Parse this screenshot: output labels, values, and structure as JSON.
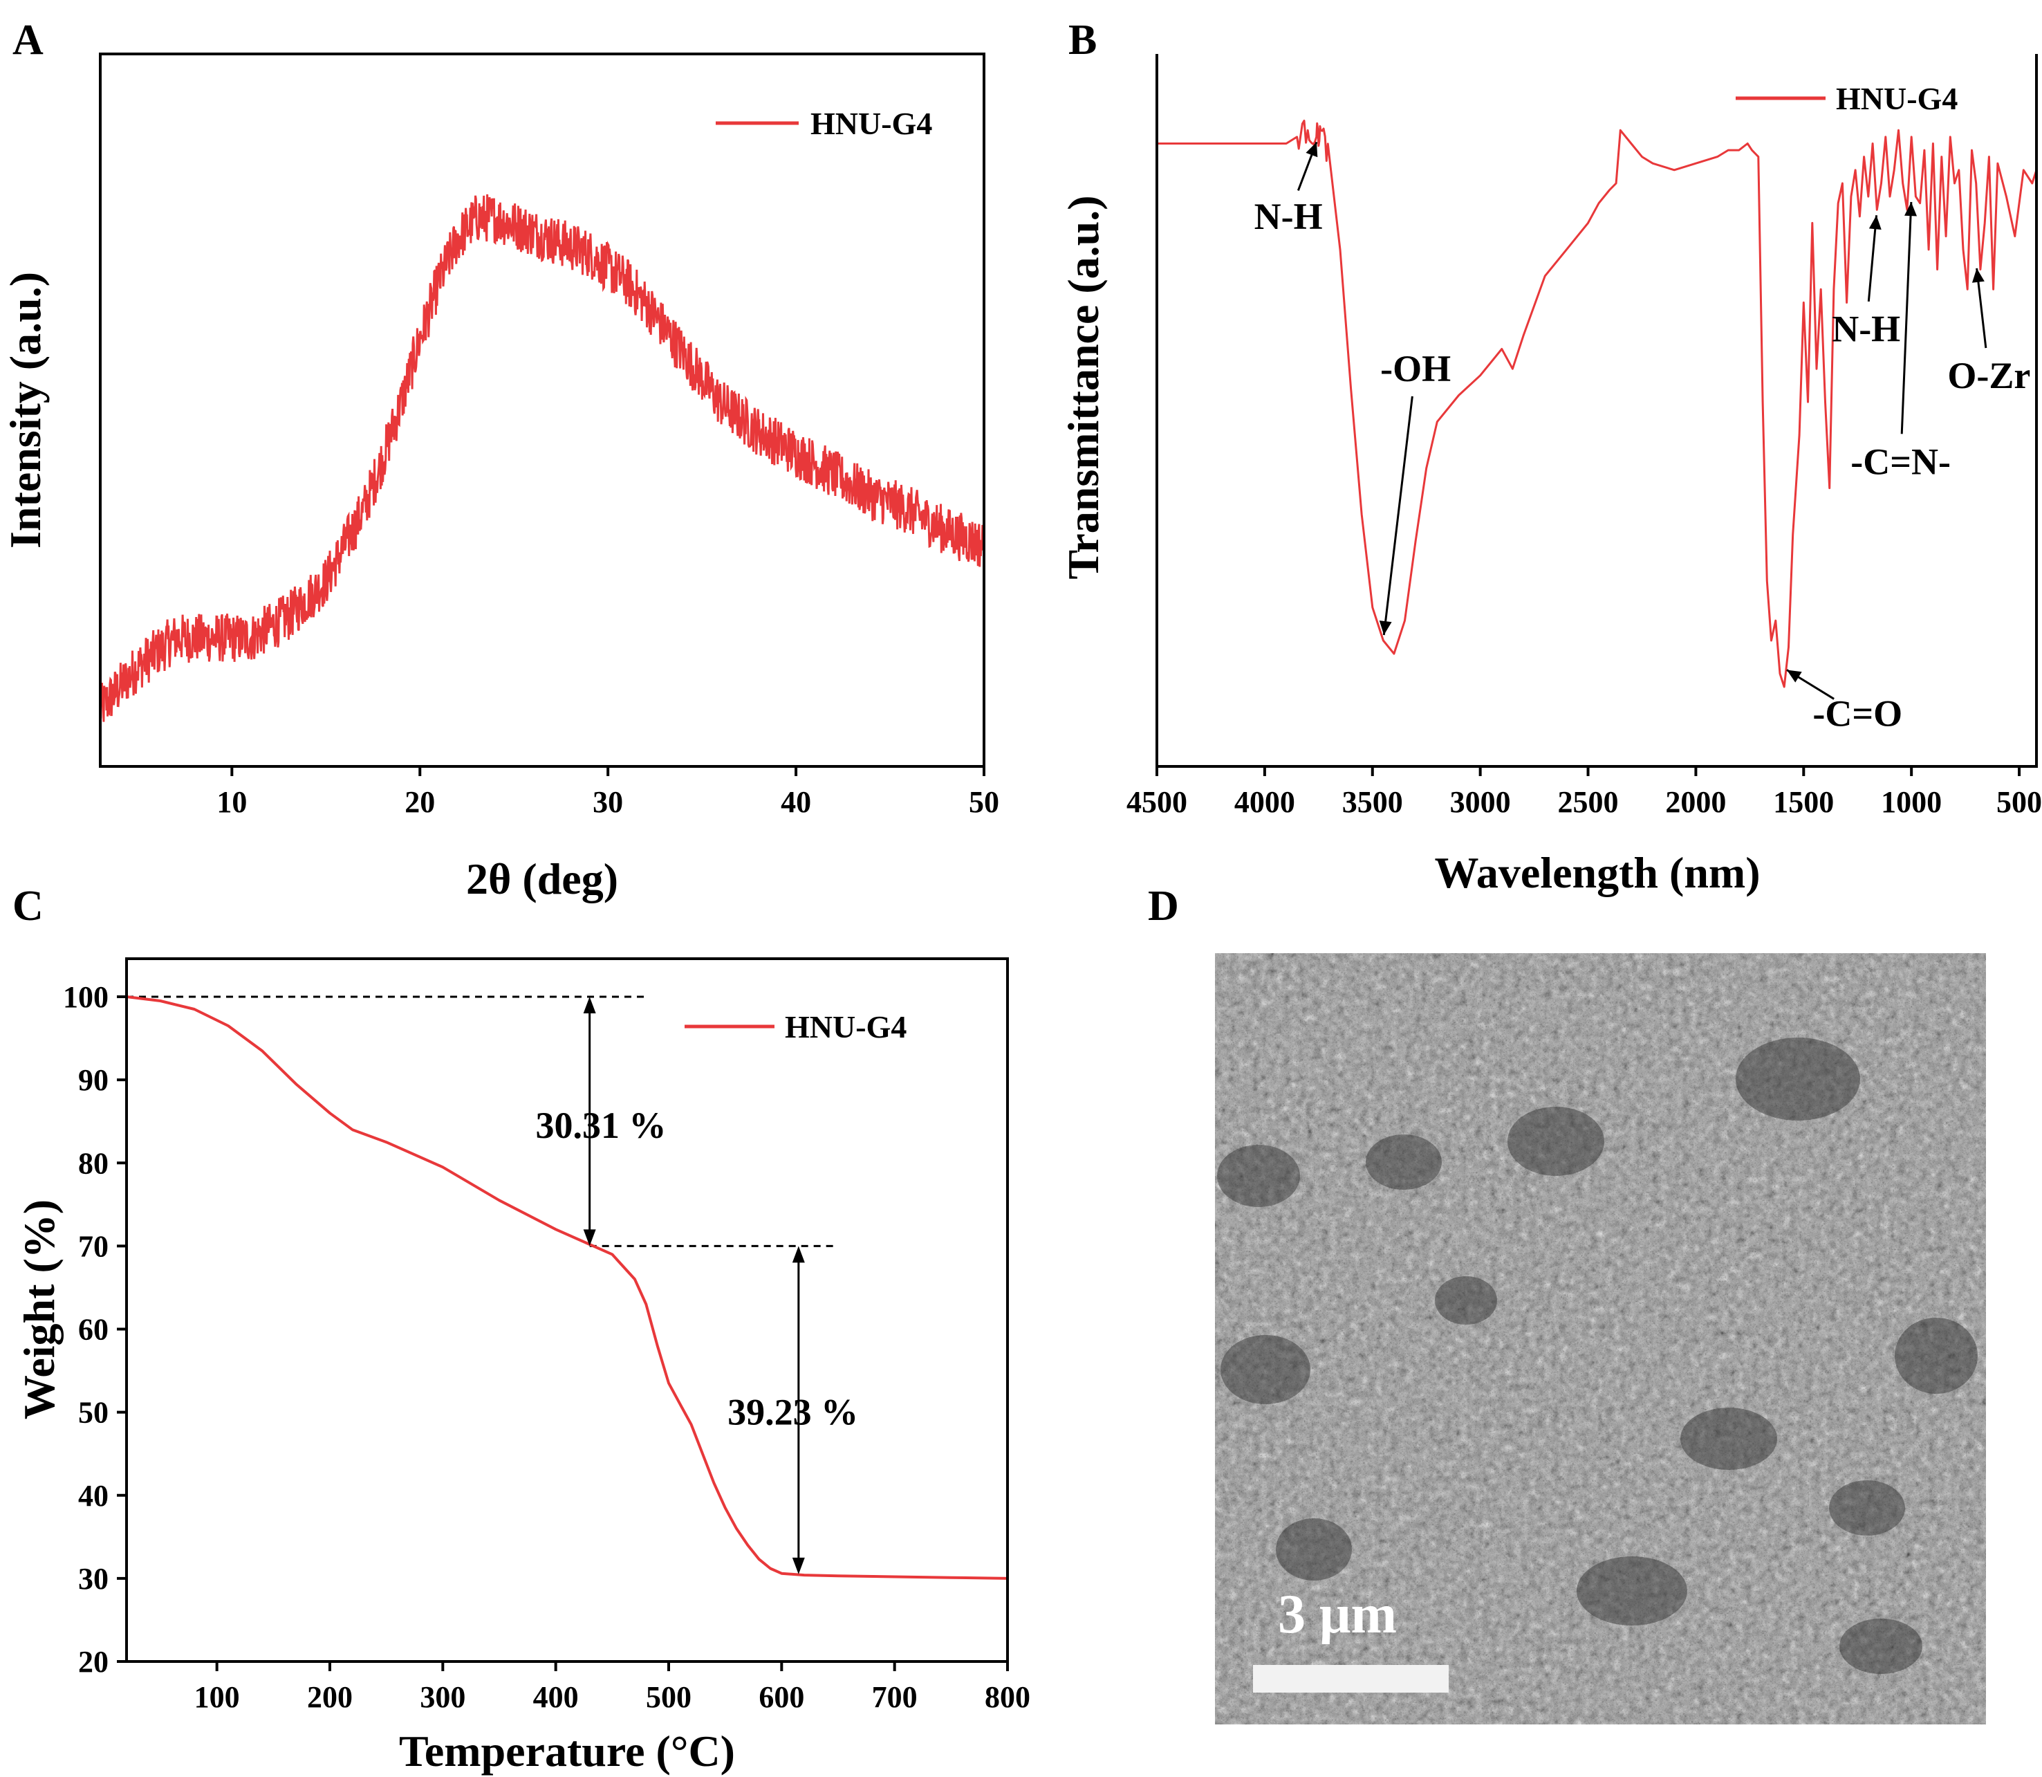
{
  "colors": {
    "series": "#e8383a",
    "axis": "#000000",
    "sem_bg": "#8a8a8a"
  },
  "panels": {
    "A": {
      "letter": "A"
    },
    "B": {
      "letter": "B"
    },
    "C": {
      "letter": "C"
    },
    "D": {
      "letter": "D",
      "scale_bar_label": "3 μm",
      "content": "SEM image"
    }
  },
  "chart_data": [
    {
      "panel": "A",
      "type": "line",
      "xlabel": "2θ (deg)",
      "ylabel": "Intensity (a.u.)",
      "xlim": [
        3,
        50
      ],
      "ylim": [
        0,
        1
      ],
      "xticks": [
        10,
        20,
        30,
        40,
        50
      ],
      "yticks": [],
      "legend": {
        "position": "top-right"
      },
      "series": [
        {
          "name": "HNU-G4",
          "noise": 0.035,
          "x": [
            3,
            5,
            7,
            9,
            11,
            13,
            15,
            17,
            18,
            19,
            20,
            21,
            22,
            23,
            24,
            25,
            26,
            27,
            28,
            29,
            30,
            31,
            32,
            34,
            36,
            38,
            40,
            42,
            44,
            46,
            48,
            50
          ],
          "y": [
            0.08,
            0.14,
            0.18,
            0.18,
            0.18,
            0.21,
            0.26,
            0.36,
            0.43,
            0.51,
            0.6,
            0.68,
            0.74,
            0.77,
            0.77,
            0.76,
            0.75,
            0.74,
            0.73,
            0.72,
            0.7,
            0.68,
            0.65,
            0.58,
            0.51,
            0.47,
            0.44,
            0.41,
            0.38,
            0.36,
            0.33,
            0.31
          ]
        }
      ]
    },
    {
      "panel": "B",
      "type": "line",
      "xlabel": "Wavelength (nm)",
      "ylabel": "Transmittance (a.u.)",
      "xlim": [
        4500,
        420
      ],
      "ylim": [
        0,
        1
      ],
      "xticks": [
        4500,
        4000,
        3500,
        3000,
        2500,
        2000,
        1500,
        1000,
        500
      ],
      "yticks": [],
      "legend": {
        "position": "top-right"
      },
      "series": [
        {
          "name": "HNU-G4",
          "x": [
            4500,
            4100,
            3900,
            3850,
            3800,
            3760,
            3740,
            3700,
            3650,
            3600,
            3550,
            3500,
            3450,
            3400,
            3350,
            3300,
            3250,
            3200,
            3100,
            3000,
            2900,
            2850,
            2800,
            2700,
            2600,
            2500,
            2450,
            2400,
            2370,
            2350,
            2300,
            2250,
            2200,
            2100,
            2000,
            1900,
            1850,
            1800,
            1760,
            1740,
            1710,
            1690,
            1670,
            1650,
            1630,
            1610,
            1590,
            1570,
            1550,
            1520,
            1500,
            1480,
            1460,
            1440,
            1420,
            1400,
            1380,
            1360,
            1340,
            1320,
            1300,
            1280,
            1260,
            1240,
            1220,
            1200,
            1180,
            1160,
            1140,
            1120,
            1100,
            1080,
            1060,
            1040,
            1020,
            1000,
            980,
            960,
            940,
            920,
            900,
            880,
            860,
            840,
            820,
            800,
            780,
            760,
            740,
            720,
            700,
            680,
            660,
            640,
            620,
            600,
            560,
            520,
            480,
            440,
            420
          ],
          "y": [
            0.94,
            0.94,
            0.94,
            0.95,
            0.96,
            0.95,
            0.96,
            0.92,
            0.78,
            0.57,
            0.38,
            0.24,
            0.19,
            0.17,
            0.22,
            0.34,
            0.45,
            0.52,
            0.56,
            0.59,
            0.63,
            0.6,
            0.65,
            0.74,
            0.78,
            0.82,
            0.85,
            0.87,
            0.88,
            0.96,
            0.94,
            0.92,
            0.91,
            0.9,
            0.91,
            0.92,
            0.93,
            0.93,
            0.94,
            0.93,
            0.92,
            0.55,
            0.28,
            0.19,
            0.22,
            0.14,
            0.12,
            0.18,
            0.35,
            0.5,
            0.7,
            0.55,
            0.82,
            0.6,
            0.72,
            0.55,
            0.42,
            0.72,
            0.85,
            0.88,
            0.7,
            0.86,
            0.9,
            0.83,
            0.92,
            0.86,
            0.94,
            0.84,
            0.88,
            0.95,
            0.86,
            0.9,
            0.96,
            0.88,
            0.84,
            0.95,
            0.86,
            0.85,
            0.93,
            0.78,
            0.94,
            0.75,
            0.92,
            0.8,
            0.95,
            0.88,
            0.9,
            0.78,
            0.72,
            0.93,
            0.88,
            0.75,
            0.82,
            0.92,
            0.72,
            0.91,
            0.86,
            0.8,
            0.9,
            0.88,
            0.9
          ]
        }
      ],
      "annotations": [
        {
          "label": "N-H",
          "point": [
            3750,
            0.95
          ],
          "label_pos": [
            3890,
            0.83
          ]
        },
        {
          "label": "-OH",
          "point": [
            3450,
            0.19
          ],
          "label_pos": [
            3300,
            0.6
          ]
        },
        {
          "label": "-C=O",
          "point": [
            1600,
            0.15
          ],
          "label_pos": [
            1250,
            0.08
          ]
        },
        {
          "label": "N-H",
          "point": [
            1160,
            0.84
          ],
          "label_pos": [
            1210,
            0.66
          ]
        },
        {
          "label": "-C=N-",
          "point": [
            1000,
            0.86
          ],
          "label_pos": [
            1050,
            0.46
          ]
        },
        {
          "label": "O-Zr",
          "point": [
            700,
            0.76
          ],
          "label_pos": [
            640,
            0.59
          ]
        }
      ]
    },
    {
      "panel": "C",
      "type": "line",
      "xlabel": "Temperature (°C)",
      "ylabel": "Weight (%)",
      "xlim": [
        20,
        800
      ],
      "ylim": [
        20,
        104
      ],
      "xticks": [
        100,
        200,
        300,
        400,
        500,
        600,
        700,
        800
      ],
      "yticks": [
        20,
        30,
        40,
        50,
        60,
        70,
        80,
        90,
        100
      ],
      "legend": {
        "position": "top-right"
      },
      "series": [
        {
          "name": "HNU-G4",
          "x": [
            20,
            50,
            80,
            110,
            140,
            170,
            200,
            220,
            250,
            300,
            350,
            400,
            430,
            450,
            470,
            480,
            490,
            500,
            510,
            520,
            530,
            540,
            550,
            560,
            570,
            580,
            590,
            600,
            620,
            650,
            700,
            750,
            800
          ],
          "y": [
            100,
            99.5,
            98.5,
            96.5,
            93.5,
            89.5,
            86,
            84,
            82.5,
            79.5,
            75.5,
            72,
            70.2,
            69,
            66,
            63,
            58,
            53.5,
            51,
            48.5,
            45,
            41.5,
            38.5,
            36,
            34,
            32.3,
            31.2,
            30.6,
            30.4,
            30.3,
            30.2,
            30.1,
            30
          ]
        }
      ],
      "reference_lines": [
        {
          "y": 100,
          "x_from": 20,
          "x_to": 480
        },
        {
          "y": 70,
          "x_from": 430,
          "x_to": 650
        }
      ],
      "annotations": [
        {
          "label": "30.31 %",
          "arrow_x": 430,
          "from": 100,
          "to": 70,
          "label_pos": [
            440,
            84.5
          ]
        },
        {
          "label": "39.23 %",
          "arrow_x": 615,
          "from": 70,
          "to": 30.5,
          "label_pos": [
            610,
            50
          ]
        }
      ]
    }
  ]
}
